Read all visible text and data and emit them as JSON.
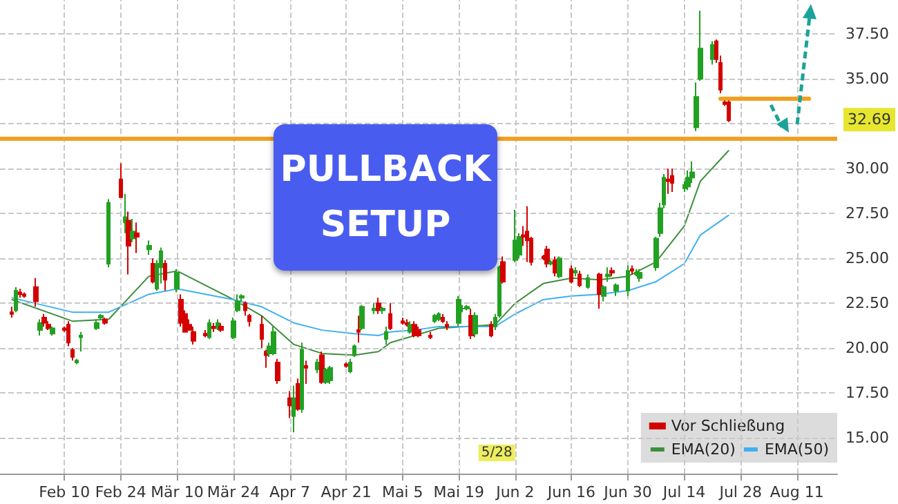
{
  "chart_data": {
    "type": "candlestick",
    "xlim": [
      "--01-25",
      "--08-21"
    ],
    "ylim": [
      13.0,
      39.4
    ],
    "xticks": [
      {
        "value": "--02-10",
        "label": "Feb 10"
      },
      {
        "value": "--02-24",
        "label": "Feb 24"
      },
      {
        "value": "--03-10",
        "label": "Mär 10"
      },
      {
        "value": "--03-24",
        "label": "Mär 24"
      },
      {
        "value": "--04-07",
        "label": "Apr 7"
      },
      {
        "value": "--04-21",
        "label": "Apr 21"
      },
      {
        "value": "--05-05",
        "label": "Mai 5"
      },
      {
        "value": "--05-19",
        "label": "Mai 19"
      },
      {
        "value": "--06-02",
        "label": "Jun 2"
      },
      {
        "value": "--06-16",
        "label": "Jun 16"
      },
      {
        "value": "--06-30",
        "label": "Jun 30"
      },
      {
        "value": "--07-14",
        "label": "Jul 14"
      },
      {
        "value": "--07-28",
        "label": "Jul 28"
      },
      {
        "value": "--08-11",
        "label": "Aug 11"
      }
    ],
    "yticks": [
      {
        "value": 15,
        "label": "15.00"
      },
      {
        "value": 17.5,
        "label": "17.50"
      },
      {
        "value": 20,
        "label": "20.00"
      },
      {
        "value": 22.5,
        "label": "22.50"
      },
      {
        "value": 25,
        "label": "25.00"
      },
      {
        "value": 27.5,
        "label": "27.50"
      },
      {
        "value": 30,
        "label": "30.00"
      },
      {
        "value": 32.5,
        "label": null
      },
      {
        "value": 35,
        "label": "35.00"
      },
      {
        "value": 37.5,
        "label": "37.50"
      }
    ],
    "grid": true,
    "legend": "bottom right",
    "series": [
      {
        "name": "Vor Schließung",
        "x": [
          "--01-28",
          "--01-29",
          "--01-30",
          "--01-31",
          "--02-03",
          "--02-04",
          "--02-05",
          "--02-06",
          "--02-07",
          "--02-10",
          "--02-11",
          "--02-12",
          "--02-13",
          "--02-14",
          "--02-18",
          "--02-19",
          "--02-20",
          "--02-21",
          "--02-24",
          "--02-25",
          "--02-26",
          "--02-27",
          "--02-28",
          "--03-03",
          "--03-04",
          "--03-05",
          "--03-06",
          "--03-07",
          "--03-10",
          "--03-11",
          "--03-12",
          "--03-13",
          "--03-14",
          "--03-17",
          "--03-18",
          "--03-19",
          "--03-20",
          "--03-21",
          "--03-24",
          "--03-25",
          "--03-26",
          "--03-27",
          "--03-28",
          "--03-31",
          "--04-01",
          "--04-02",
          "--04-03",
          "--04-04",
          "--04-07",
          "--04-08",
          "--04-09",
          "--04-10",
          "--04-11",
          "--04-14",
          "--04-15",
          "--04-16",
          "--04-17",
          "--04-21",
          "--04-22",
          "--04-23",
          "--04-24",
          "--04-25",
          "--04-28",
          "--04-29",
          "--04-30",
          "--05-01",
          "--05-02",
          "--05-05",
          "--05-06",
          "--05-07",
          "--05-08",
          "--05-09",
          "--05-12",
          "--05-13",
          "--05-14",
          "--05-15",
          "--05-16",
          "--05-19",
          "--05-20",
          "--05-21",
          "--05-22",
          "--05-23",
          "--05-27",
          "--05-28",
          "--05-29",
          "--05-30",
          "--06-02",
          "--06-03",
          "--06-04",
          "--06-05",
          "--06-06",
          "--06-09",
          "--06-10",
          "--06-11",
          "--06-12",
          "--06-13",
          "--06-16",
          "--06-17",
          "--06-18",
          "--06-20",
          "--06-23",
          "--06-24",
          "--06-25",
          "--06-26",
          "--06-27",
          "--06-30",
          "--07-01",
          "--07-02",
          "--07-03",
          "--07-07",
          "--07-08",
          "--07-09",
          "--07-10",
          "--07-11",
          "--07-14",
          "--07-15",
          "--07-16",
          "--07-17",
          "--07-18",
          "--07-21",
          "--07-22",
          "--07-23",
          "--07-24",
          "--07-25"
        ],
        "ohlc": [
          [
            22.0,
            22.3,
            21.7,
            21.9
          ],
          [
            22.1,
            23.4,
            22.0,
            23.2
          ],
          [
            23.1,
            23.3,
            22.8,
            23.0
          ],
          [
            23.0,
            23.1,
            22.8,
            22.9
          ],
          [
            23.4,
            23.9,
            22.3,
            22.6
          ],
          [
            21.0,
            21.6,
            20.7,
            21.4
          ],
          [
            21.7,
            21.9,
            21.2,
            21.4
          ],
          [
            21.3,
            21.5,
            21.0,
            21.1
          ],
          [
            20.8,
            21.2,
            20.7,
            21.1
          ],
          [
            21.1,
            21.2,
            20.9,
            21.0
          ],
          [
            21.3,
            21.5,
            20.1,
            20.3
          ],
          [
            19.9,
            20.0,
            19.3,
            19.5
          ],
          [
            19.2,
            19.4,
            19.1,
            19.3
          ],
          [
            20.6,
            20.9,
            19.8,
            20.7
          ],
          [
            21.1,
            21.6,
            21.0,
            21.4
          ],
          [
            21.7,
            21.9,
            21.6,
            21.8
          ],
          [
            21.6,
            21.7,
            21.3,
            21.4
          ],
          [
            24.7,
            28.3,
            24.5,
            28.1
          ],
          [
            29.4,
            30.3,
            28.4,
            28.4
          ],
          [
            27.0,
            28.6,
            26.4,
            27.3
          ],
          [
            27.1,
            27.6,
            24.1,
            25.7
          ],
          [
            26.1,
            27.2,
            25.9,
            26.5
          ],
          [
            26.4,
            27.0,
            25.3,
            26.2
          ],
          [
            25.5,
            26.0,
            25.2,
            25.7
          ],
          [
            24.7,
            25.0,
            23.6,
            23.7
          ],
          [
            23.3,
            24.9,
            23.2,
            24.7
          ],
          [
            24.5,
            25.6,
            23.6,
            25.4
          ],
          [
            24.7,
            24.9,
            23.2,
            23.8
          ],
          [
            23.3,
            24.4,
            23.1,
            24.2
          ],
          [
            22.7,
            23.0,
            21.2,
            21.4
          ],
          [
            21.9,
            22.1,
            20.9,
            20.9
          ],
          [
            21.3,
            21.6,
            21.0,
            21.0
          ],
          [
            20.9,
            21.2,
            20.2,
            20.4
          ],
          [
            20.8,
            21.0,
            20.6,
            20.7
          ],
          [
            20.6,
            21.6,
            20.5,
            21.4
          ],
          [
            21.2,
            21.4,
            20.9,
            21.1
          ],
          [
            21.1,
            21.6,
            21.0,
            21.4
          ],
          [
            21.2,
            21.4,
            20.9,
            21.0
          ],
          [
            20.6,
            21.7,
            20.5,
            21.5
          ],
          [
            22.1,
            23.0,
            22.0,
            22.6
          ],
          [
            22.8,
            23.0,
            22.6,
            22.9
          ],
          [
            22.5,
            22.6,
            21.8,
            22.1
          ],
          [
            21.8,
            21.9,
            21.2,
            21.5
          ],
          [
            21.3,
            21.8,
            20.0,
            20.5
          ],
          [
            19.8,
            19.9,
            18.9,
            19.6
          ],
          [
            19.7,
            20.3,
            19.5,
            20.1
          ],
          [
            19.7,
            21.2,
            19.6,
            20.9
          ],
          [
            19.2,
            19.4,
            18.0,
            18.2
          ],
          [
            17.2,
            17.6,
            16.1,
            16.8
          ],
          [
            16.2,
            17.9,
            15.3,
            17.2
          ],
          [
            18.0,
            18.3,
            16.5,
            16.6
          ],
          [
            16.6,
            20.3,
            16.4,
            19.9
          ],
          [
            19.0,
            19.3,
            18.0,
            18.9
          ],
          [
            18.8,
            19.4,
            18.6,
            19.2
          ],
          [
            19.6,
            19.8,
            18.0,
            18.1
          ],
          [
            18.1,
            18.9,
            18.0,
            18.8
          ],
          [
            18.2,
            19.0,
            18.0,
            18.9
          ],
          [
            19.1,
            19.2,
            18.9,
            19.0
          ],
          [
            18.7,
            19.4,
            18.6,
            19.2
          ],
          [
            19.6,
            20.2,
            19.5,
            20.1
          ],
          [
            21.0,
            21.8,
            20.3,
            20.9
          ],
          [
            21.1,
            22.4,
            21.0,
            22.3
          ],
          [
            22.1,
            22.5,
            21.9,
            22.2
          ],
          [
            22.5,
            22.8,
            21.9,
            22.1
          ],
          [
            22.1,
            22.3,
            21.9,
            22.2
          ],
          [
            20.5,
            21.2,
            20.2,
            20.9
          ],
          [
            21.9,
            22.5,
            21.0,
            21.1
          ],
          [
            21.5,
            21.7,
            21.3,
            21.4
          ],
          [
            21.4,
            21.6,
            21.2,
            21.3
          ],
          [
            20.9,
            21.5,
            20.8,
            21.3
          ],
          [
            21.3,
            21.5,
            20.6,
            20.7
          ],
          [
            21.0,
            21.2,
            20.6,
            20.7
          ],
          [
            20.7,
            20.9,
            20.5,
            20.6
          ],
          [
            21.5,
            21.9,
            21.4,
            21.8
          ],
          [
            21.6,
            22.0,
            21.5,
            21.9
          ],
          [
            21.7,
            21.9,
            21.4,
            21.5
          ],
          [
            21.3,
            21.5,
            21.0,
            21.2
          ],
          [
            21.4,
            22.9,
            21.2,
            22.7
          ],
          [
            22.2,
            22.4,
            22.0,
            22.2
          ],
          [
            22.2,
            22.4,
            22.1,
            22.3
          ],
          [
            21.8,
            22.2,
            20.5,
            20.7
          ],
          [
            20.8,
            22.0,
            20.6,
            21.8
          ],
          [
            21.3,
            21.5,
            20.6,
            20.7
          ],
          [
            21.2,
            21.9,
            21.0,
            21.7
          ],
          [
            21.8,
            24.6,
            21.7,
            24.5
          ],
          [
            24.8,
            25.1,
            23.6,
            23.7
          ],
          [
            24.9,
            27.7,
            24.8,
            26.0
          ],
          [
            25.2,
            26.4,
            25.0,
            26.2
          ],
          [
            26.3,
            26.8,
            25.7,
            26.2
          ],
          [
            26.5,
            27.9,
            24.8,
            26.0
          ],
          [
            26.1,
            26.2,
            24.6,
            24.8
          ],
          [
            25.1,
            25.2,
            24.9,
            25.0
          ],
          [
            25.5,
            25.7,
            24.5,
            24.7
          ],
          [
            24.7,
            24.9,
            24.6,
            24.8
          ],
          [
            24.9,
            25.1,
            24.0,
            24.2
          ],
          [
            24.0,
            25.1,
            23.9,
            25.0
          ],
          [
            24.4,
            24.6,
            23.6,
            23.7
          ],
          [
            24.2,
            24.5,
            24.0,
            24.3
          ],
          [
            24.1,
            24.3,
            23.4,
            23.5
          ],
          [
            23.4,
            24.1,
            23.3,
            23.9
          ],
          [
            24.1,
            24.2,
            22.2,
            23.0
          ],
          [
            22.9,
            23.5,
            22.6,
            23.4
          ],
          [
            24.0,
            24.5,
            23.7,
            24.1
          ],
          [
            24.3,
            24.5,
            24.0,
            24.2
          ],
          [
            23.2,
            23.6,
            22.9,
            23.5
          ],
          [
            23.2,
            24.6,
            22.9,
            24.3
          ],
          [
            24.4,
            24.6,
            24.1,
            24.3
          ],
          [
            24.2,
            24.4,
            24.0,
            24.1
          ],
          [
            23.9,
            24.4,
            23.7,
            24.2
          ],
          [
            24.5,
            26.2,
            24.3,
            26.1
          ],
          [
            26.4,
            28.1,
            26.2,
            27.8
          ],
          [
            28.0,
            29.7,
            27.8,
            29.5
          ],
          [
            29.4,
            30.0,
            28.6,
            29.3
          ],
          [
            29.6,
            30.0,
            28.7,
            29.2
          ],
          [
            28.9,
            29.3,
            28.7,
            29.1
          ],
          [
            29.0,
            29.9,
            28.8,
            29.5
          ],
          [
            29.5,
            30.4,
            29.2,
            29.8
          ],
          [
            32.3,
            34.8,
            32.1,
            34.0
          ],
          [
            35.0,
            38.8,
            34.9,
            36.7
          ],
          [
            36.1,
            37.1,
            35.8,
            36.9
          ],
          [
            37.1,
            37.2,
            35.9,
            36.1
          ],
          [
            35.9,
            36.3,
            34.2,
            34.4
          ],
          [
            33.7,
            33.8,
            33.5,
            33.6
          ],
          [
            33.7,
            33.8,
            32.6,
            32.69
          ]
        ],
        "colors": [
          "#d40000",
          "#22a022",
          "#d40000",
          "#d40000",
          "#d40000",
          "#22a022",
          "#d40000",
          "#d40000",
          "#22a022",
          "#d40000",
          "#d40000",
          "#d40000",
          "#22a022",
          "#22a022",
          "#22a022",
          "#22a022",
          "#d40000",
          "#22a022",
          "#d40000",
          "#22a022",
          "#d40000",
          "#22a022",
          "#d40000",
          "#22a022",
          "#d40000",
          "#22a022",
          "#22a022",
          "#d40000",
          "#22a022",
          "#d40000",
          "#d40000",
          "#d40000",
          "#d40000",
          "#d40000",
          "#22a022",
          "#d40000",
          "#22a022",
          "#d40000",
          "#22a022",
          "#22a022",
          "#22a022",
          "#d40000",
          "#d40000",
          "#d40000",
          "#d40000",
          "#22a022",
          "#22a022",
          "#d40000",
          "#d40000",
          "#22a022",
          "#d40000",
          "#22a022",
          "#d40000",
          "#22a022",
          "#d40000",
          "#22a022",
          "#22a022",
          "#d40000",
          "#22a022",
          "#22a022",
          "#d40000",
          "#22a022",
          "#22a022",
          "#d40000",
          "#22a022",
          "#22a022",
          "#d40000",
          "#d40000",
          "#d40000",
          "#22a022",
          "#d40000",
          "#d40000",
          "#d40000",
          "#22a022",
          "#22a022",
          "#d40000",
          "#d40000",
          "#22a022",
          "#22a022",
          "#22a022",
          "#d40000",
          "#22a022",
          "#d40000",
          "#22a022",
          "#22a022",
          "#d40000",
          "#22a022",
          "#22a022",
          "#d40000",
          "#d40000",
          "#d40000",
          "#d40000",
          "#d40000",
          "#22a022",
          "#d40000",
          "#22a022",
          "#d40000",
          "#22a022",
          "#d40000",
          "#22a022",
          "#d40000",
          "#22a022",
          "#22a022",
          "#d40000",
          "#22a022",
          "#22a022",
          "#d40000",
          "#22a022",
          "#22a022",
          "#22a022",
          "#22a022",
          "#22a022",
          "#d40000",
          "#d40000",
          "#22a022",
          "#22a022",
          "#22a022",
          "#22a022",
          "#22a022",
          "#22a022",
          "#d40000",
          "#d40000",
          "#d40000",
          "#d40000"
        ]
      },
      {
        "type": "line",
        "name": "EMA(20)",
        "color": "#3d8f3d",
        "x": [
          "--01-28",
          "--02-12",
          "--02-21",
          "--03-03",
          "--03-10",
          "--03-24",
          "--03-31",
          "--04-08",
          "--04-15",
          "--04-23",
          "--04-29",
          "--05-02",
          "--05-08",
          "--05-14",
          "--05-28",
          "--06-02",
          "--06-09",
          "--06-16",
          "--06-23",
          "--06-30",
          "--07-07",
          "--07-14",
          "--07-18",
          "--07-25"
        ],
        "values": [
          22.7,
          21.5,
          21.6,
          24.0,
          24.3,
          22.7,
          21.8,
          20.2,
          19.7,
          19.6,
          19.8,
          20.3,
          20.7,
          21.1,
          21.3,
          22.5,
          23.6,
          23.9,
          23.8,
          24.0,
          24.8,
          26.8,
          29.3,
          31.0
        ]
      },
      {
        "type": "line",
        "name": "EMA(50)",
        "color": "#3fb0f0",
        "x": [
          "--01-28",
          "--02-12",
          "--02-21",
          "--03-03",
          "--03-10",
          "--03-24",
          "--03-31",
          "--04-08",
          "--04-15",
          "--04-23",
          "--04-29",
          "--05-02",
          "--05-08",
          "--05-14",
          "--05-28",
          "--06-02",
          "--06-09",
          "--06-16",
          "--06-23",
          "--06-30",
          "--07-07",
          "--07-14",
          "--07-18",
          "--07-25"
        ],
        "values": [
          22.8,
          22.0,
          22.0,
          23.0,
          23.3,
          22.7,
          22.3,
          21.4,
          21.0,
          20.8,
          20.7,
          20.9,
          21.0,
          21.2,
          21.2,
          21.9,
          22.7,
          22.9,
          23.0,
          23.2,
          23.7,
          24.7,
          26.3,
          27.4
        ]
      },
      {
        "type": "line",
        "color": "#f0a020",
        "x": [
          "--07-23",
          "--08-14"
        ],
        "values": [
          33.9,
          33.9
        ]
      }
    ],
    "ref_lines": [
      {
        "axis": "y",
        "value": 31.7,
        "color": "#f0a020"
      }
    ],
    "annotations": [
      "32.69",
      {
        "text": "5/28",
        "x": "--05-28"
      },
      "PULLBACK SETUP"
    ]
  }
}
